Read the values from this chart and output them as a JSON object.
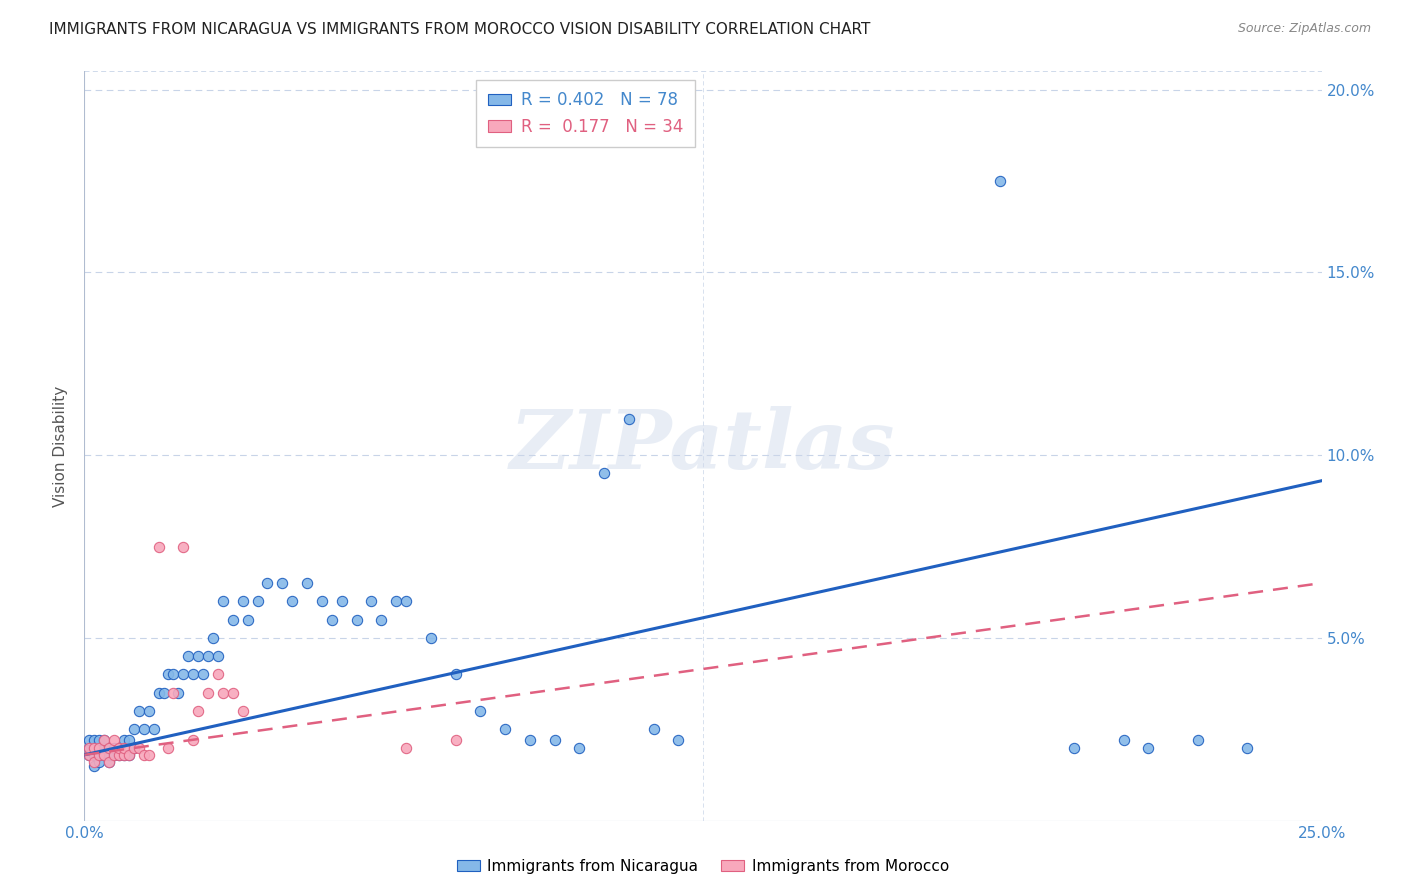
{
  "title": "IMMIGRANTS FROM NICARAGUA VS IMMIGRANTS FROM MOROCCO VISION DISABILITY CORRELATION CHART",
  "source": "Source: ZipAtlas.com",
  "ylabel": "Vision Disability",
  "xlim": [
    0.0,
    0.25
  ],
  "ylim": [
    0.0,
    0.205
  ],
  "xtick_vals": [
    0.0,
    0.05,
    0.1,
    0.15,
    0.2,
    0.25
  ],
  "xtick_labels": [
    "0.0%",
    "",
    "",
    "",
    "",
    "25.0%"
  ],
  "ytick_vals": [
    0.0,
    0.05,
    0.1,
    0.15,
    0.2
  ],
  "ytick_labels_right": [
    "",
    "5.0%",
    "10.0%",
    "15.0%",
    "20.0%"
  ],
  "nicaragua_R": 0.402,
  "nicaragua_N": 78,
  "morocco_R": 0.177,
  "morocco_N": 34,
  "nicaragua_color": "#85b8e8",
  "morocco_color": "#f8a8bc",
  "trend_nicaragua_color": "#2060c0",
  "trend_morocco_color": "#e06080",
  "background_color": "#ffffff",
  "grid_color": "#c8d4e8",
  "watermark": "ZIPatlas",
  "axis_tick_color": "#4488cc",
  "ylabel_color": "#555555",
  "title_color": "#222222",
  "source_color": "#888888",
  "nic_trend_x": [
    0.0,
    0.25
  ],
  "nic_trend_y": [
    0.018,
    0.093
  ],
  "mor_trend_x": [
    0.0,
    0.25
  ],
  "mor_trend_y": [
    0.018,
    0.065
  ],
  "nicaragua_x": [
    0.001,
    0.001,
    0.001,
    0.002,
    0.002,
    0.002,
    0.002,
    0.003,
    0.003,
    0.003,
    0.003,
    0.004,
    0.004,
    0.004,
    0.005,
    0.005,
    0.005,
    0.006,
    0.006,
    0.007,
    0.007,
    0.008,
    0.008,
    0.009,
    0.009,
    0.01,
    0.01,
    0.011,
    0.012,
    0.013,
    0.014,
    0.015,
    0.016,
    0.017,
    0.018,
    0.019,
    0.02,
    0.021,
    0.022,
    0.023,
    0.024,
    0.025,
    0.026,
    0.027,
    0.028,
    0.03,
    0.032,
    0.033,
    0.035,
    0.037,
    0.04,
    0.042,
    0.045,
    0.048,
    0.05,
    0.052,
    0.055,
    0.058,
    0.06,
    0.063,
    0.065,
    0.07,
    0.075,
    0.08,
    0.085,
    0.09,
    0.095,
    0.1,
    0.105,
    0.11,
    0.115,
    0.12,
    0.185,
    0.2,
    0.21,
    0.215,
    0.225,
    0.235
  ],
  "nicaragua_y": [
    0.018,
    0.02,
    0.022,
    0.015,
    0.018,
    0.02,
    0.022,
    0.016,
    0.018,
    0.02,
    0.022,
    0.018,
    0.02,
    0.022,
    0.016,
    0.018,
    0.02,
    0.018,
    0.02,
    0.018,
    0.02,
    0.018,
    0.022,
    0.018,
    0.022,
    0.02,
    0.025,
    0.03,
    0.025,
    0.03,
    0.025,
    0.035,
    0.035,
    0.04,
    0.04,
    0.035,
    0.04,
    0.045,
    0.04,
    0.045,
    0.04,
    0.045,
    0.05,
    0.045,
    0.06,
    0.055,
    0.06,
    0.055,
    0.06,
    0.065,
    0.065,
    0.06,
    0.065,
    0.06,
    0.055,
    0.06,
    0.055,
    0.06,
    0.055,
    0.06,
    0.06,
    0.05,
    0.04,
    0.03,
    0.025,
    0.022,
    0.022,
    0.02,
    0.095,
    0.11,
    0.025,
    0.022,
    0.175,
    0.02,
    0.022,
    0.02,
    0.022,
    0.02
  ],
  "morocco_x": [
    0.001,
    0.001,
    0.002,
    0.002,
    0.003,
    0.003,
    0.004,
    0.004,
    0.005,
    0.005,
    0.006,
    0.006,
    0.007,
    0.007,
    0.008,
    0.008,
    0.009,
    0.01,
    0.011,
    0.012,
    0.013,
    0.015,
    0.017,
    0.018,
    0.02,
    0.022,
    0.023,
    0.025,
    0.027,
    0.028,
    0.03,
    0.032,
    0.065,
    0.075
  ],
  "morocco_y": [
    0.018,
    0.02,
    0.016,
    0.02,
    0.018,
    0.02,
    0.018,
    0.022,
    0.016,
    0.02,
    0.018,
    0.022,
    0.018,
    0.02,
    0.018,
    0.02,
    0.018,
    0.02,
    0.02,
    0.018,
    0.018,
    0.075,
    0.02,
    0.035,
    0.075,
    0.022,
    0.03,
    0.035,
    0.04,
    0.035,
    0.035,
    0.03,
    0.02,
    0.022
  ]
}
